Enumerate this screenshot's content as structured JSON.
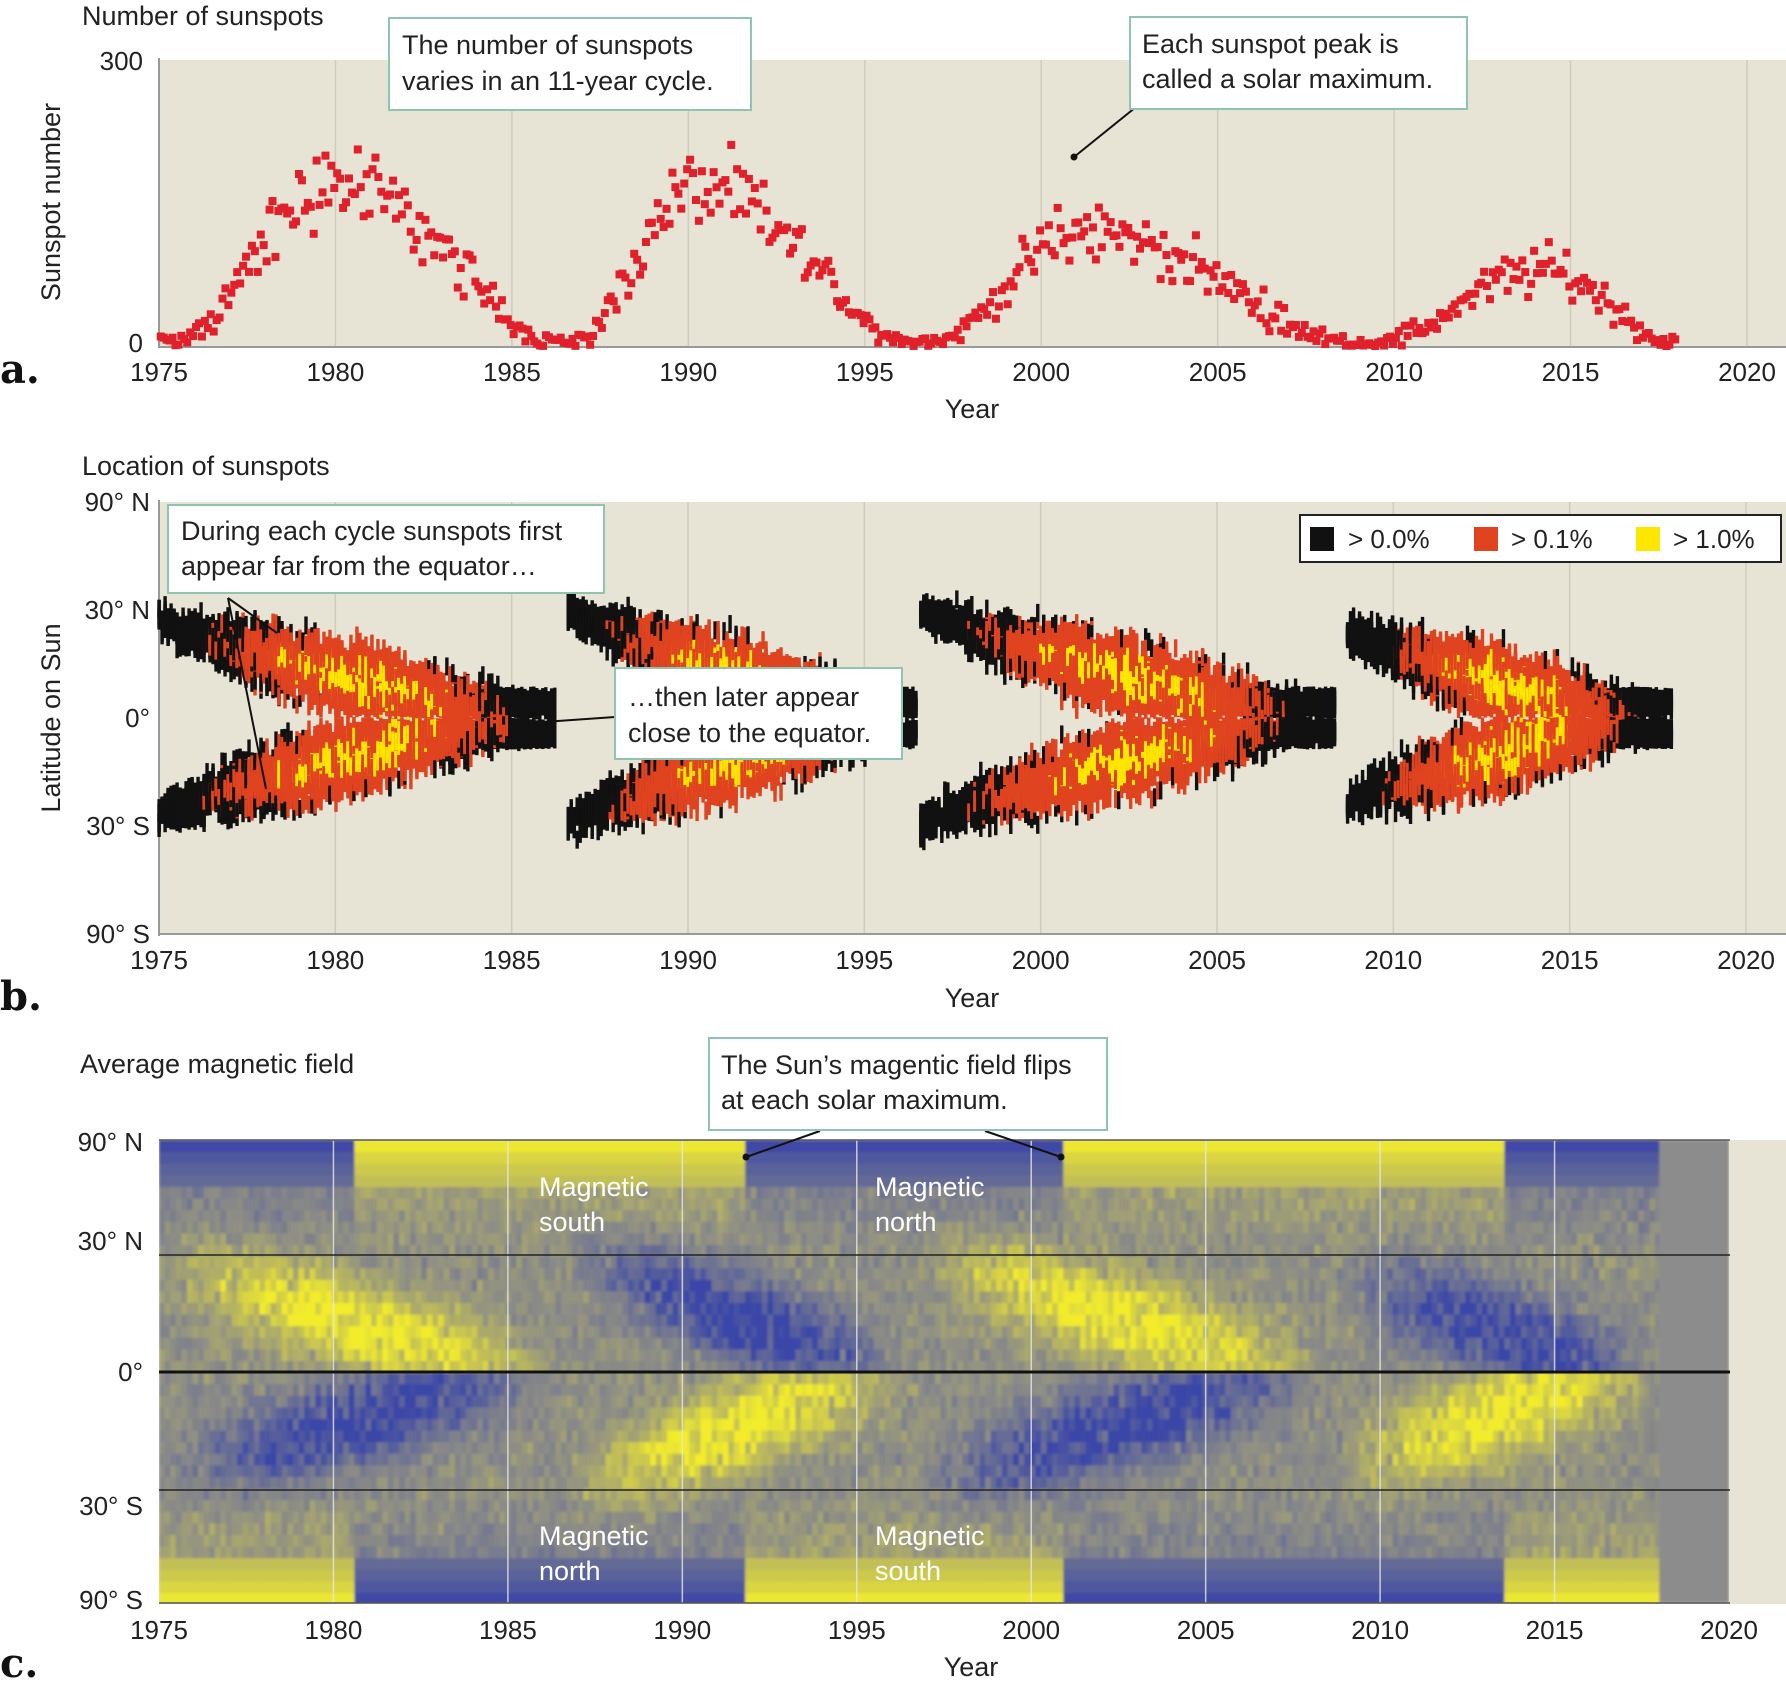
{
  "chart_data": [
    {
      "id": "a",
      "type": "scatter",
      "title": "Number of sunspots",
      "xlabel": "Year",
      "ylabel": "Sunspot number",
      "xlim": [
        1975,
        2020
      ],
      "ylim": [
        0,
        300
      ],
      "x_ticks": [
        "1975",
        "1980",
        "1985",
        "1990",
        "1995",
        "2000",
        "2005",
        "2010",
        "2015",
        "2020"
      ],
      "y_ticks": [
        "0",
        "300"
      ],
      "grid": "vertical",
      "point_color": "#e0202a",
      "cycles": [
        {
          "start": 1975.0,
          "peak": 1979.9,
          "end": 1986.4,
          "peak_value": 170
        },
        {
          "start": 1986.4,
          "peak": 1990.2,
          "end": 1996.4,
          "peak_value": 165
        },
        {
          "start": 1996.4,
          "peak": 2001.2,
          "end": 2008.9,
          "peak_value": 120
        },
        {
          "start": 2008.9,
          "peak": 2014.2,
          "end": 2018.0,
          "peak_value": 80
        }
      ],
      "annotations": [
        {
          "id": "cycle",
          "text_lines": [
            "The number of sunspots",
            "varies in an 11-year cycle."
          ]
        },
        {
          "id": "maximum",
          "text_lines": [
            "Each sunspot peak is",
            "called a solar maximum."
          ],
          "points_to_x": 2001.1,
          "points_to_y": 185
        }
      ]
    },
    {
      "id": "b",
      "type": "heatmap",
      "title": "Location of sunspots",
      "xlabel": "Year",
      "ylabel": "Latitude on Sun",
      "xlim": [
        1975,
        2020
      ],
      "x_ticks": [
        "1975",
        "1980",
        "1985",
        "1990",
        "1995",
        "2000",
        "2005",
        "2010",
        "2015",
        "2020"
      ],
      "y_ticks": [
        "90° N",
        "30° N",
        "0°",
        "30° S",
        "90° S"
      ],
      "legend": {
        "placement": "top-right",
        "entries": [
          {
            "label": "> 0.0%",
            "color": "#111111"
          },
          {
            "label": "> 0.1%",
            "color": "#e0431f"
          },
          {
            "label": "> 1.0%",
            "color": "#ffe600"
          }
        ]
      },
      "bands": [
        {
          "start": 1975.0,
          "end": 1986.3,
          "hi_lat": 35,
          "lo_lat": 5,
          "peak": 1980.5
        },
        {
          "start": 1986.6,
          "end": 1996.5,
          "hi_lat": 38,
          "lo_lat": 5,
          "peak": 1990.0
        },
        {
          "start": 1996.6,
          "end": 2008.4,
          "hi_lat": 38,
          "lo_lat": 5,
          "peak": 2001.5
        },
        {
          "start": 2008.7,
          "end": 2017.9,
          "hi_lat": 32,
          "lo_lat": 5,
          "peak": 2014.0
        }
      ],
      "annotations": [
        {
          "id": "far",
          "text_lines": [
            "During each cycle sunspots first",
            "appear far from the equator…"
          ]
        },
        {
          "id": "close",
          "text_lines": [
            "…then later appear",
            "close to the equator."
          ]
        }
      ]
    },
    {
      "id": "c",
      "type": "heatmap",
      "title": "Average magnetic field",
      "xlabel": "Year",
      "xlim": [
        1975,
        2020
      ],
      "data_end_year": 2018,
      "x_ticks": [
        "1975",
        "1980",
        "1985",
        "1990",
        "1995",
        "2000",
        "2005",
        "2010",
        "2015",
        "2020"
      ],
      "y_ticks": [
        "90° N",
        "30° N",
        "0°",
        "30° S",
        "90° S"
      ],
      "colors": {
        "positive": "#f2ec2c",
        "negative": "#3a46a8",
        "neutral": "#8f8f84",
        "no_data": "#8c8c8c"
      },
      "region_labels": [
        {
          "text_lines": [
            "Magnetic",
            "south"
          ],
          "year": 1987.5,
          "hemisphere": "north"
        },
        {
          "text_lines": [
            "Magnetic",
            "north"
          ],
          "year": 1997.0,
          "hemisphere": "north"
        },
        {
          "text_lines": [
            "Magnetic",
            "north"
          ],
          "year": 1987.5,
          "hemisphere": "south"
        },
        {
          "text_lines": [
            "Magnetic",
            "south"
          ],
          "year": 1997.0,
          "hemisphere": "south"
        }
      ],
      "annotations": [
        {
          "id": "flip",
          "text_lines": [
            "The Sun’s magentic field flips",
            "at each solar maximum."
          ],
          "points_to_years": [
            1991.7,
            2000.9
          ]
        }
      ]
    }
  ],
  "panel_labels": [
    "a.",
    "b.",
    "c."
  ],
  "colors": {
    "plot_bg": "#e7e4d6",
    "gridline": "#ffffff",
    "callout_border": "#8fc5ae",
    "axis": "#999999"
  }
}
